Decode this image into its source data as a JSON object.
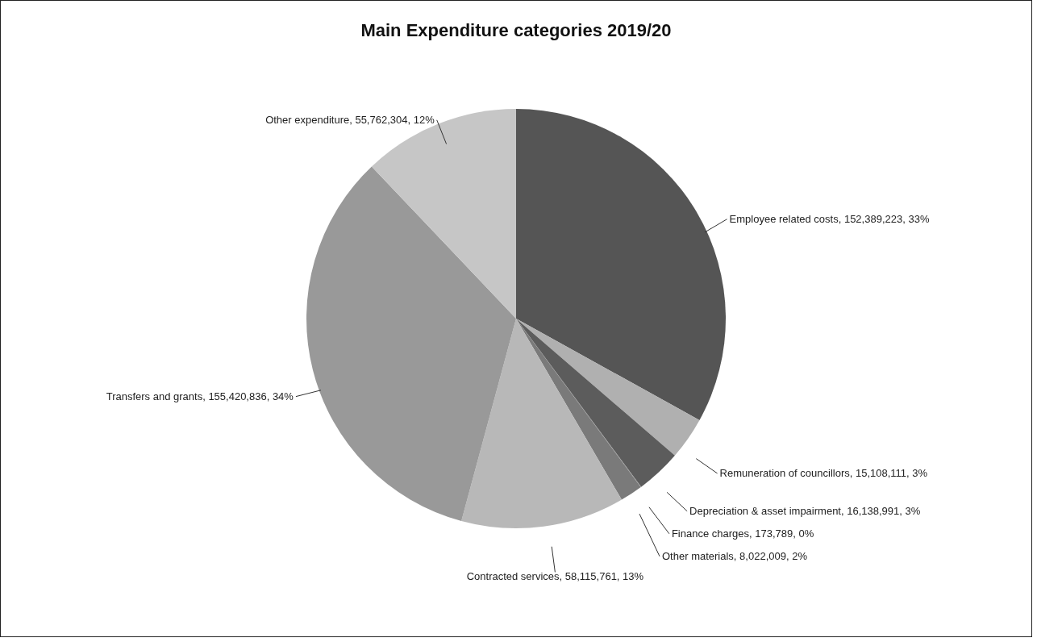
{
  "chart_data": {
    "type": "pie",
    "title": "Main Expenditure categories  2019/20",
    "categories": [
      "Employee related costs",
      "Remuneration of councillors",
      "Depreciation & asset impairment",
      "Finance charges",
      "Other materials",
      "Contracted services",
      "Transfers and grants",
      "Other expenditure"
    ],
    "values": [
      152389223,
      15108111,
      16138991,
      173789,
      8022009,
      58115761,
      155420836,
      55762304
    ],
    "value_labels": [
      "152,389,223, 33%",
      "15,108,111, 3%",
      "16,138,991, 3%",
      "173,789, 0%",
      "8,022,009, 2%",
      "58,115,761, 13%",
      "155,420,836, 34%",
      "55,762,304, 12%"
    ],
    "colors": [
      "#555555",
      "#b0b0b0",
      "#5c5c5c",
      "#8a8a8a",
      "#7a7a7a",
      "#b8b8b8",
      "#999999",
      "#c6c6c6"
    ],
    "legend": false
  }
}
